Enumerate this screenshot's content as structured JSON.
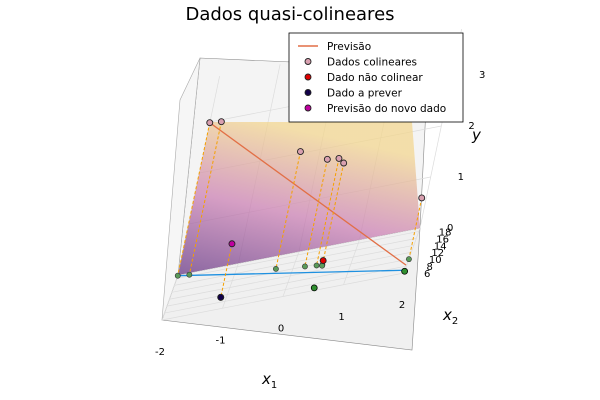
{
  "chart_data": {
    "type": "scatter3d",
    "title": "Dados quasi-colineares",
    "xlabel": "x",
    "xlabel_sub": "1",
    "ylabel": "x",
    "ylabel_sub": "2",
    "zlabel": "y",
    "xlim": [
      -2,
      2
    ],
    "ylim": [
      6,
      19
    ],
    "zlim": [
      0,
      3
    ],
    "xticks": [
      "-2",
      "-1",
      "0",
      "1",
      "2"
    ],
    "yticks": [
      "6",
      "8",
      "10",
      "12",
      "14",
      "16",
      "18"
    ],
    "zticks": [
      "0",
      "1",
      "2",
      "3"
    ],
    "grid": true,
    "legend_position": "top-right",
    "legend": [
      {
        "label": "Previsão",
        "kind": "line",
        "color": "#e26f46"
      },
      {
        "label": "Dados colineares",
        "kind": "marker",
        "color": "#d9a0b0"
      },
      {
        "label": "Dado não colinear",
        "kind": "marker",
        "color": "#e00000"
      },
      {
        "label": "Dado a prever",
        "kind": "marker",
        "color": "#12004a"
      },
      {
        "label": "Previsão do novo dado",
        "kind": "marker",
        "color": "#c000a0"
      }
    ],
    "series": [
      {
        "name": "Dados colineares",
        "color": "#d9a0b0",
        "points": [
          [
            -2,
            18.8,
            3.0
          ],
          [
            -1.8,
            18.4,
            3.0
          ],
          [
            -0.3,
            15.0,
            2.3
          ],
          [
            0.2,
            14.0,
            2.1
          ],
          [
            0.4,
            13.6,
            2.1
          ],
          [
            0.5,
            13.4,
            2.0
          ],
          [
            2.0,
            10.0,
            1.2
          ]
        ]
      },
      {
        "name": "Dado não colinear",
        "color": "#e00000",
        "points": [
          [
            0.5,
            13.2,
            0.1
          ]
        ]
      },
      {
        "name": "Dado a prever",
        "color": "#12004a",
        "points": [
          [
            -1.1,
            9.5,
            0.0
          ]
        ]
      },
      {
        "name": "Previsão do novo dado",
        "color": "#c000a0",
        "points": [
          [
            -1.1,
            9.5,
            1.05
          ]
        ]
      }
    ],
    "projection_line": {
      "color": "#1e90e0",
      "from": [
        -2,
        18.8
      ],
      "to": [
        2,
        6.8
      ]
    },
    "prediction_line": {
      "color": "#e26f46",
      "from": [
        -2,
        18.8,
        3.0
      ],
      "to": [
        2,
        6.8,
        0.1
      ]
    },
    "ground_markers": {
      "color": "#2f8f2f",
      "points": [
        [
          -1.1,
          9.5
        ],
        [
          0.5,
          6.8
        ],
        [
          2.0,
          6.5
        ]
      ]
    },
    "surface": {
      "colors": [
        "#5e2b7e",
        "#c97ab0",
        "#f3d58a"
      ]
    }
  }
}
